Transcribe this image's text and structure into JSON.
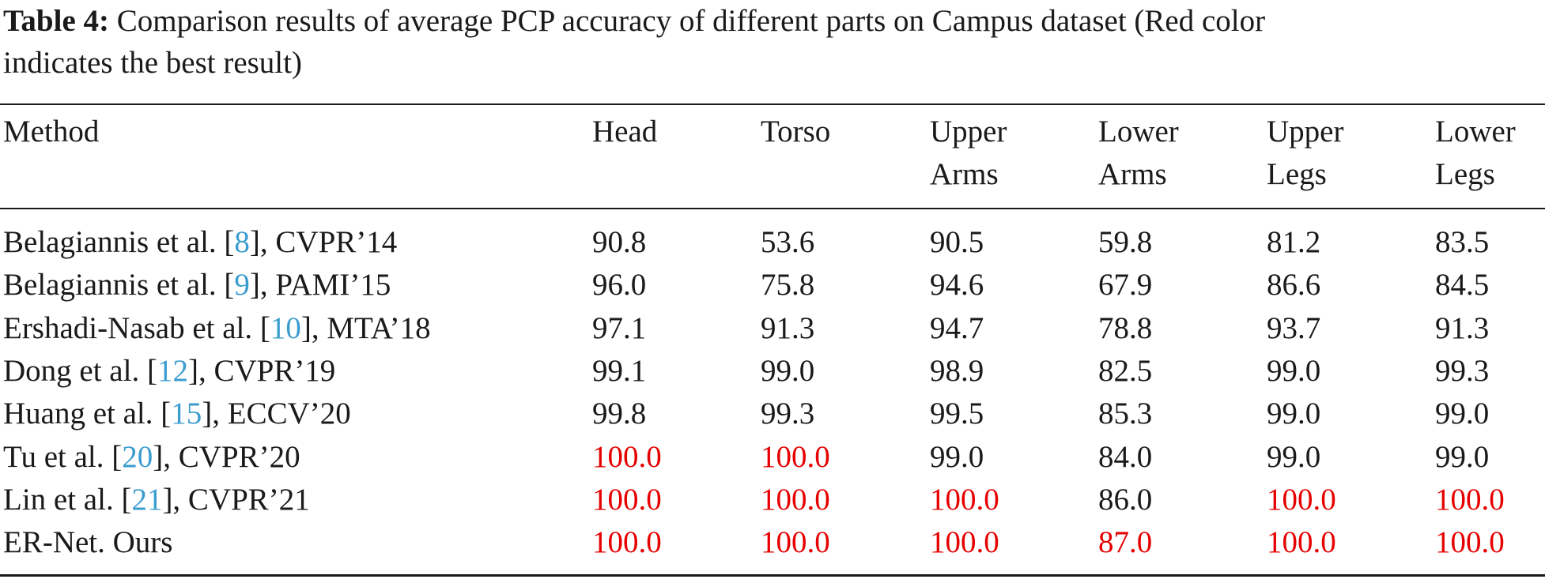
{
  "caption": {
    "label": "Table 4:",
    "text_line1": " Comparison results of average PCP accuracy of different parts on Campus dataset (Red color",
    "text_line2": "indicates the best result)"
  },
  "header": {
    "method": "Method",
    "head": "Head",
    "torso": "Torso",
    "upper_arms": [
      "Upper",
      "Arms"
    ],
    "lower_arms": [
      "Lower",
      "Arms"
    ],
    "upper_legs": [
      "Upper",
      "Legs"
    ],
    "lower_legs": [
      "Lower",
      "Legs"
    ]
  },
  "colors": {
    "best": "#e60000",
    "citation": "#3b9ccf"
  },
  "rows": [
    {
      "author": "Belagiannis et al. [",
      "ref": "8",
      "venue": "], CVPR’14",
      "values": [
        "90.8",
        "53.6",
        "90.5",
        "59.8",
        "81.2",
        "83.5"
      ],
      "best": [
        false,
        false,
        false,
        false,
        false,
        false
      ]
    },
    {
      "author": "Belagiannis et al. [",
      "ref": "9",
      "venue": "], PAMI’15",
      "values": [
        "96.0",
        "75.8",
        "94.6",
        "67.9",
        "86.6",
        "84.5"
      ],
      "best": [
        false,
        false,
        false,
        false,
        false,
        false
      ]
    },
    {
      "author": "Ershadi-Nasab et al. [",
      "ref": "10",
      "venue": "], MTA’18",
      "values": [
        "97.1",
        "91.3",
        "94.7",
        "78.8",
        "93.7",
        "91.3"
      ],
      "best": [
        false,
        false,
        false,
        false,
        false,
        false
      ]
    },
    {
      "author": "Dong et al. [",
      "ref": "12",
      "venue": "], CVPR’19",
      "values": [
        "99.1",
        "99.0",
        "98.9",
        "82.5",
        "99.0",
        "99.3"
      ],
      "best": [
        false,
        false,
        false,
        false,
        false,
        false
      ]
    },
    {
      "author": "Huang et al. [",
      "ref": "15",
      "venue": "], ECCV’20",
      "values": [
        "99.8",
        "99.3",
        "99.5",
        "85.3",
        "99.0",
        "99.0"
      ],
      "best": [
        false,
        false,
        false,
        false,
        false,
        false
      ]
    },
    {
      "author": "Tu et al. [",
      "ref": "20",
      "venue": "], CVPR’20",
      "values": [
        "100.0",
        "100.0",
        "99.0",
        "84.0",
        "99.0",
        "99.0"
      ],
      "best": [
        true,
        true,
        false,
        false,
        false,
        false
      ]
    },
    {
      "author": "Lin et al. [",
      "ref": "21",
      "venue": "], CVPR’21",
      "values": [
        "100.0",
        "100.0",
        "100.0",
        "86.0",
        "100.0",
        "100.0"
      ],
      "best": [
        true,
        true,
        true,
        false,
        true,
        true
      ]
    },
    {
      "author": "ER-Net. Ours",
      "ref": "",
      "venue": "",
      "values": [
        "100.0",
        "100.0",
        "100.0",
        "87.0",
        "100.0",
        "100.0"
      ],
      "best": [
        true,
        true,
        true,
        true,
        true,
        true
      ]
    }
  ]
}
